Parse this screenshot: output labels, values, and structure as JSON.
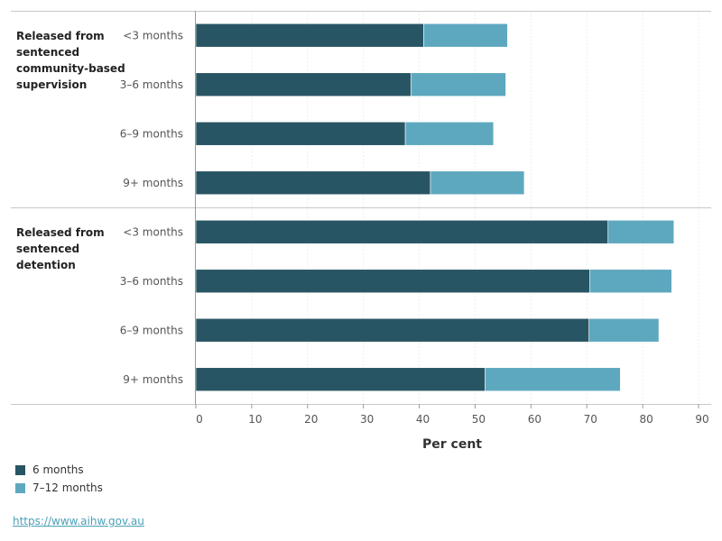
{
  "chart_data": {
    "type": "bar",
    "stacked": true,
    "orientation": "horizontal",
    "xlabel": "Per cent",
    "xlim": [
      0,
      90
    ],
    "xticks": [
      0,
      10,
      20,
      30,
      40,
      50,
      60,
      70,
      80,
      90
    ],
    "grid": true,
    "legend_position": "bottom-left",
    "groups": [
      {
        "label": "Released from sentenced community-based supervision",
        "label_lines": [
          "Released from",
          "sentenced",
          "community-based",
          "supervision"
        ],
        "categories": [
          "<3 months",
          "3–6 months",
          "6–9 months",
          "9+ months"
        ]
      },
      {
        "label": "Released from sentenced detention",
        "label_lines": [
          "Released from",
          "sentenced",
          "detention"
        ],
        "categories": [
          "<3 months",
          "3–6 months",
          "6–9 months",
          "9+ months"
        ]
      }
    ],
    "series": [
      {
        "name": "6 months",
        "color": "#285563",
        "values": [
          [
            40.8,
            38.5,
            37.5,
            42.0
          ],
          [
            73.8,
            70.5,
            70.4,
            51.8
          ]
        ]
      },
      {
        "name": "7–12 months",
        "color": "#5ea8bf",
        "values": [
          [
            15.0,
            17.0,
            15.8,
            16.8
          ],
          [
            11.8,
            14.7,
            12.5,
            24.2
          ]
        ]
      }
    ]
  },
  "source": {
    "url": "https://www.aihw.gov.au"
  }
}
